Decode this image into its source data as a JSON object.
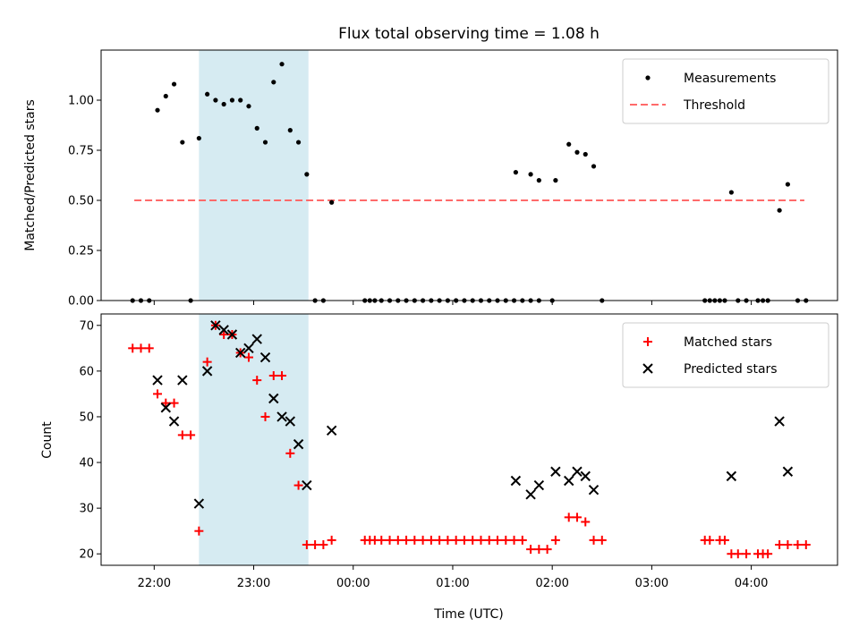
{
  "chart_data": [
    {
      "type": "scatter",
      "title": "Flux total observing time = 1.08 h",
      "xlabel": "",
      "ylabel": "Matched/Predicted stars",
      "x_unit": "hours of UTC",
      "xlim": [
        "21:28",
        "04:52"
      ],
      "ylim": [
        0,
        1.25
      ],
      "yticks": [
        "0.00",
        "0.25",
        "0.50",
        "0.75",
        "1.00"
      ],
      "xticks": [],
      "shaded_span": {
        "start": "22:27",
        "end": "23:33",
        "color": "#add8e6"
      },
      "threshold": {
        "name": "Threshold",
        "value": 0.5,
        "x_start": "21:48",
        "x_end": "04:32",
        "color": "#ff6a6a",
        "style": "dashed"
      },
      "legend": {
        "location": "upper right",
        "entries": [
          "Measurements",
          "Threshold"
        ]
      },
      "series": [
        {
          "name": "Measurements",
          "color": "#000000",
          "marker": "dot",
          "points": [
            [
              "21:47",
              0.0
            ],
            [
              "21:52",
              0.0
            ],
            [
              "21:57",
              0.0
            ],
            [
              "22:02",
              0.95
            ],
            [
              "22:07",
              1.02
            ],
            [
              "22:12",
              1.08
            ],
            [
              "22:17",
              0.79
            ],
            [
              "22:22",
              0.0
            ],
            [
              "22:27",
              0.81
            ],
            [
              "22:32",
              1.03
            ],
            [
              "22:37",
              1.0
            ],
            [
              "22:42",
              0.98
            ],
            [
              "22:47",
              1.0
            ],
            [
              "22:52",
              1.0
            ],
            [
              "22:57",
              0.97
            ],
            [
              "23:02",
              0.86
            ],
            [
              "23:07",
              0.79
            ],
            [
              "23:12",
              1.09
            ],
            [
              "23:17",
              1.18
            ],
            [
              "23:22",
              0.85
            ],
            [
              "23:27",
              0.79
            ],
            [
              "23:32",
              0.63
            ],
            [
              "23:37",
              0.0
            ],
            [
              "23:42",
              0.0
            ],
            [
              "23:47",
              0.49
            ],
            [
              "00:07",
              0.0
            ],
            [
              "00:10",
              0.0
            ],
            [
              "00:13",
              0.0
            ],
            [
              "00:17",
              0.0
            ],
            [
              "00:22",
              0.0
            ],
            [
              "00:27",
              0.0
            ],
            [
              "00:32",
              0.0
            ],
            [
              "00:37",
              0.0
            ],
            [
              "00:42",
              0.0
            ],
            [
              "00:47",
              0.0
            ],
            [
              "00:52",
              0.0
            ],
            [
              "00:57",
              0.0
            ],
            [
              "01:02",
              0.0
            ],
            [
              "01:07",
              0.0
            ],
            [
              "01:12",
              0.0
            ],
            [
              "01:17",
              0.0
            ],
            [
              "01:22",
              0.0
            ],
            [
              "01:27",
              0.0
            ],
            [
              "01:32",
              0.0
            ],
            [
              "01:37",
              0.0
            ],
            [
              "01:42",
              0.0
            ],
            [
              "01:47",
              0.0
            ],
            [
              "01:52",
              0.0
            ],
            [
              "01:38",
              0.64
            ],
            [
              "01:47",
              0.63
            ],
            [
              "01:52",
              0.6
            ],
            [
              "02:02",
              0.6
            ],
            [
              "02:10",
              0.78
            ],
            [
              "02:15",
              0.74
            ],
            [
              "02:20",
              0.73
            ],
            [
              "02:25",
              0.67
            ],
            [
              "02:30",
              0.0
            ],
            [
              "02:00",
              0.0
            ],
            [
              "03:32",
              0.0
            ],
            [
              "03:35",
              0.0
            ],
            [
              "03:38",
              0.0
            ],
            [
              "03:41",
              0.0
            ],
            [
              "03:44",
              0.0
            ],
            [
              "03:48",
              0.54
            ],
            [
              "03:52",
              0.0
            ],
            [
              "03:57",
              0.0
            ],
            [
              "04:04",
              0.0
            ],
            [
              "04:07",
              0.0
            ],
            [
              "04:10",
              0.0
            ],
            [
              "04:17",
              0.45
            ],
            [
              "04:22",
              0.58
            ],
            [
              "04:28",
              0.0
            ],
            [
              "04:33",
              0.0
            ]
          ]
        }
      ]
    },
    {
      "type": "scatter",
      "title": "",
      "xlabel": "Time (UTC)",
      "ylabel": "Count",
      "xlim": [
        "21:28",
        "04:52"
      ],
      "ylim": [
        17.5,
        72.5
      ],
      "yticks": [
        "20",
        "30",
        "40",
        "50",
        "60",
        "70"
      ],
      "xticks": [
        "22:00",
        "23:00",
        "00:00",
        "01:00",
        "02:00",
        "03:00",
        "04:00"
      ],
      "shaded_span": {
        "start": "22:27",
        "end": "23:33",
        "color": "#add8e6"
      },
      "legend": {
        "location": "upper right",
        "entries": [
          "Matched stars",
          "Predicted stars"
        ]
      },
      "series": [
        {
          "name": "Matched stars",
          "color": "#ff0000",
          "marker": "plus",
          "points": [
            [
              "21:47",
              65
            ],
            [
              "21:52",
              65
            ],
            [
              "21:57",
              65
            ],
            [
              "22:02",
              55
            ],
            [
              "22:07",
              53
            ],
            [
              "22:12",
              53
            ],
            [
              "22:17",
              46
            ],
            [
              "22:22",
              46
            ],
            [
              "22:27",
              25
            ],
            [
              "22:32",
              62
            ],
            [
              "22:37",
              70
            ],
            [
              "22:42",
              68
            ],
            [
              "22:47",
              68
            ],
            [
              "22:52",
              64
            ],
            [
              "22:57",
              63
            ],
            [
              "23:02",
              58
            ],
            [
              "23:07",
              50
            ],
            [
              "23:12",
              59
            ],
            [
              "23:17",
              59
            ],
            [
              "23:22",
              42
            ],
            [
              "23:27",
              35
            ],
            [
              "23:32",
              22
            ],
            [
              "23:37",
              22
            ],
            [
              "23:42",
              22
            ],
            [
              "23:47",
              23
            ],
            [
              "00:07",
              23
            ],
            [
              "00:10",
              23
            ],
            [
              "00:13",
              23
            ],
            [
              "00:17",
              23
            ],
            [
              "00:22",
              23
            ],
            [
              "00:27",
              23
            ],
            [
              "00:32",
              23
            ],
            [
              "00:37",
              23
            ],
            [
              "00:42",
              23
            ],
            [
              "00:47",
              23
            ],
            [
              "00:52",
              23
            ],
            [
              "00:57",
              23
            ],
            [
              "01:02",
              23
            ],
            [
              "01:07",
              23
            ],
            [
              "01:12",
              23
            ],
            [
              "01:17",
              23
            ],
            [
              "01:22",
              23
            ],
            [
              "01:27",
              23
            ],
            [
              "01:32",
              23
            ],
            [
              "01:37",
              23
            ],
            [
              "01:42",
              23
            ],
            [
              "01:47",
              21
            ],
            [
              "01:52",
              21
            ],
            [
              "01:57",
              21
            ],
            [
              "02:02",
              23
            ],
            [
              "02:10",
              28
            ],
            [
              "02:15",
              28
            ],
            [
              "02:20",
              27
            ],
            [
              "02:25",
              23
            ],
            [
              "02:30",
              23
            ],
            [
              "03:32",
              23
            ],
            [
              "03:35",
              23
            ],
            [
              "03:41",
              23
            ],
            [
              "03:44",
              23
            ],
            [
              "03:48",
              20
            ],
            [
              "03:52",
              20
            ],
            [
              "03:57",
              20
            ],
            [
              "04:04",
              20
            ],
            [
              "04:07",
              20
            ],
            [
              "04:10",
              20
            ],
            [
              "04:17",
              22
            ],
            [
              "04:22",
              22
            ],
            [
              "04:28",
              22
            ],
            [
              "04:33",
              22
            ]
          ]
        },
        {
          "name": "Predicted stars",
          "color": "#000000",
          "marker": "x",
          "points": [
            [
              "22:02",
              58
            ],
            [
              "22:07",
              52
            ],
            [
              "22:12",
              49
            ],
            [
              "22:17",
              58
            ],
            [
              "22:27",
              31
            ],
            [
              "22:32",
              60
            ],
            [
              "22:37",
              70
            ],
            [
              "22:42",
              69
            ],
            [
              "22:47",
              68
            ],
            [
              "22:52",
              64
            ],
            [
              "22:57",
              65
            ],
            [
              "23:02",
              67
            ],
            [
              "23:07",
              63
            ],
            [
              "23:12",
              54
            ],
            [
              "23:17",
              50
            ],
            [
              "23:22",
              49
            ],
            [
              "23:27",
              44
            ],
            [
              "23:32",
              35
            ],
            [
              "23:47",
              47
            ],
            [
              "01:38",
              36
            ],
            [
              "01:47",
              33
            ],
            [
              "01:52",
              35
            ],
            [
              "02:02",
              38
            ],
            [
              "02:10",
              36
            ],
            [
              "02:15",
              38
            ],
            [
              "02:20",
              37
            ],
            [
              "02:25",
              34
            ],
            [
              "03:48",
              37
            ],
            [
              "04:17",
              49
            ],
            [
              "04:22",
              38
            ]
          ]
        }
      ]
    }
  ]
}
